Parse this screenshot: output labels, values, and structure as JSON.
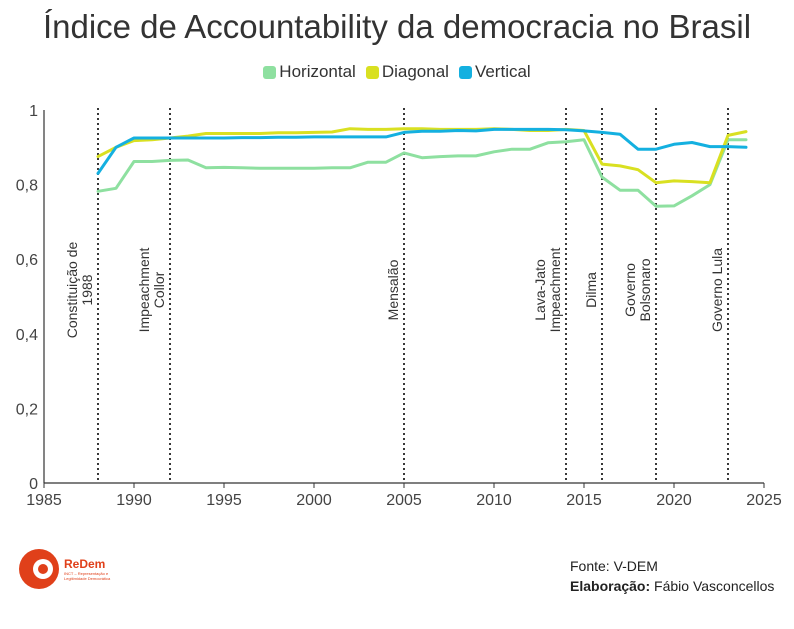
{
  "title": "Índice de Accountability da democracia no Brasil",
  "legend": {
    "items": [
      {
        "label": "Horizontal",
        "color": "#8ee0a0"
      },
      {
        "label": "Diagonal",
        "color": "#d9e021"
      },
      {
        "label": "Vertical",
        "color": "#14b0e0"
      }
    ]
  },
  "footer": {
    "source": "Fonte: V-DEM",
    "credit_label": "Elaboração:",
    "credit_name": "Fábio Vasconcellos"
  },
  "logo": {
    "name": "ReDem",
    "subtitle": "INCT – Representação e Legitimidade Democrática",
    "color": "#e0401a"
  },
  "chart_data": {
    "type": "line",
    "title": "Índice de Accountability da democracia no Brasil",
    "xlim": [
      1985,
      2025
    ],
    "ylim": [
      0,
      1
    ],
    "x_ticks": [
      1985,
      1990,
      1995,
      2000,
      2005,
      2010,
      2015,
      2020,
      2025
    ],
    "y_ticks": [
      0,
      0.2,
      0.4,
      0.6,
      0.8,
      1
    ],
    "y_tick_labels": [
      "0",
      "0,2",
      "0,4",
      "0,6",
      "0,8",
      "1"
    ],
    "grid": false,
    "legend_position": "top-center",
    "series": [
      {
        "name": "Horizontal",
        "color": "#8ee0a0",
        "x": [
          1988,
          1989,
          1990,
          1991,
          1992,
          1993,
          1994,
          1995,
          1996,
          1997,
          1998,
          1999,
          2000,
          2001,
          2002,
          2003,
          2004,
          2005,
          2006,
          2007,
          2008,
          2009,
          2010,
          2011,
          2012,
          2013,
          2014,
          2015,
          2016,
          2017,
          2018,
          2019,
          2020,
          2021,
          2022,
          2023,
          2024
        ],
        "y": [
          0.782,
          0.79,
          0.862,
          0.862,
          0.865,
          0.866,
          0.845,
          0.846,
          0.845,
          0.844,
          0.844,
          0.844,
          0.844,
          0.845,
          0.845,
          0.86,
          0.86,
          0.885,
          0.872,
          0.875,
          0.877,
          0.877,
          0.888,
          0.895,
          0.895,
          0.912,
          0.915,
          0.92,
          0.82,
          0.785,
          0.785,
          0.742,
          0.743,
          0.77,
          0.8,
          0.92,
          0.92
        ]
      },
      {
        "name": "Diagonal",
        "color": "#d9e021",
        "x": [
          1988,
          1989,
          1990,
          1991,
          1992,
          1993,
          1994,
          1995,
          1996,
          1997,
          1998,
          1999,
          2000,
          2001,
          2002,
          2003,
          2004,
          2005,
          2006,
          2007,
          2008,
          2009,
          2010,
          2011,
          2012,
          2013,
          2014,
          2015,
          2016,
          2017,
          2018,
          2019,
          2020,
          2021,
          2022,
          2023,
          2024
        ],
        "y": [
          0.875,
          0.9,
          0.918,
          0.92,
          0.925,
          0.93,
          0.937,
          0.937,
          0.937,
          0.937,
          0.939,
          0.939,
          0.94,
          0.941,
          0.95,
          0.948,
          0.948,
          0.95,
          0.95,
          0.948,
          0.948,
          0.948,
          0.95,
          0.948,
          0.945,
          0.945,
          0.948,
          0.945,
          0.855,
          0.85,
          0.84,
          0.805,
          0.81,
          0.808,
          0.805,
          0.932,
          0.942
        ]
      },
      {
        "name": "Vertical",
        "color": "#14b0e0",
        "x": [
          1988,
          1989,
          1990,
          1991,
          1992,
          1993,
          1994,
          1995,
          1996,
          1997,
          1998,
          1999,
          2000,
          2001,
          2002,
          2003,
          2004,
          2005,
          2006,
          2007,
          2008,
          2009,
          2010,
          2011,
          2012,
          2013,
          2014,
          2015,
          2016,
          2017,
          2018,
          2019,
          2020,
          2021,
          2022,
          2023,
          2024
        ],
        "y": [
          0.83,
          0.9,
          0.925,
          0.925,
          0.925,
          0.925,
          0.925,
          0.925,
          0.926,
          0.926,
          0.927,
          0.927,
          0.928,
          0.928,
          0.928,
          0.928,
          0.928,
          0.94,
          0.943,
          0.943,
          0.945,
          0.944,
          0.948,
          0.948,
          0.948,
          0.948,
          0.947,
          0.944,
          0.94,
          0.935,
          0.895,
          0.895,
          0.908,
          0.913,
          0.902,
          0.902,
          0.9
        ]
      }
    ],
    "annotations": [
      {
        "x": 1988,
        "lines": [
          "Constituição de",
          "1988"
        ]
      },
      {
        "x": 1992,
        "lines": [
          "Impeachment",
          "Collor"
        ]
      },
      {
        "x": 2005,
        "lines": [
          "Mensalão"
        ]
      },
      {
        "x": 2014,
        "lines": [
          "Lava-Jato",
          "Impeachment"
        ]
      },
      {
        "x": 2016,
        "lines": [
          "Dilma"
        ]
      },
      {
        "x": 2019,
        "lines": [
          "Governo",
          "Bolsonaro"
        ]
      },
      {
        "x": 2023,
        "lines": [
          "Governo Lula"
        ]
      }
    ]
  }
}
